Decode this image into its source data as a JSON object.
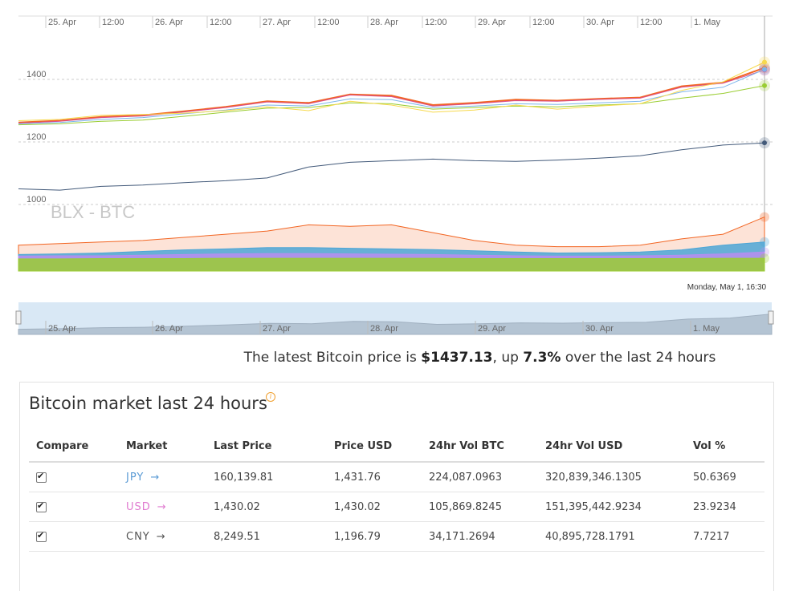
{
  "chart": {
    "watermark": "BLX - BTC",
    "tooltip_date": "Monday, May 1, 16:30",
    "x_ticks": [
      "25. Apr",
      "12:00",
      "26. Apr",
      "12:00",
      "27. Apr",
      "12:00",
      "28. Apr",
      "12:00",
      "29. Apr",
      "12:00",
      "30. Apr",
      "12:00",
      "1. May"
    ],
    "y_ticks": [
      "1400",
      "1200",
      "1000"
    ],
    "navigator_ticks": [
      "25. Apr",
      "26. Apr",
      "27. Apr",
      "28. Apr",
      "29. Apr",
      "30. Apr",
      "1. May"
    ]
  },
  "chart_data": {
    "type": "line",
    "y_axis_ticks": [
      1000,
      1200,
      1400
    ],
    "x_range": [
      "24. Apr 18:00",
      "1. May 16:30"
    ],
    "series": [
      {
        "color": "#f26522",
        "values": [
          1262,
          1268,
          1280,
          1285,
          1298,
          1312,
          1330,
          1325,
          1352,
          1348,
          1318,
          1325,
          1335,
          1332,
          1338,
          1342,
          1378,
          1390,
          1437
        ]
      },
      {
        "color": "#d94e8f",
        "values": [
          1260,
          1266,
          1278,
          1283,
          1296,
          1310,
          1328,
          1322,
          1350,
          1345,
          1315,
          1322,
          1332,
          1330,
          1336,
          1340,
          1375,
          1388,
          1430
        ]
      },
      {
        "color": "#7cb5ec",
        "values": [
          1258,
          1262,
          1272,
          1278,
          1290,
          1302,
          1318,
          1315,
          1338,
          1335,
          1310,
          1315,
          1322,
          1320,
          1325,
          1330,
          1360,
          1375,
          1432
        ]
      },
      {
        "color": "#9acd32",
        "values": [
          1255,
          1258,
          1266,
          1270,
          1282,
          1295,
          1308,
          1310,
          1325,
          1322,
          1305,
          1310,
          1315,
          1312,
          1318,
          1322,
          1340,
          1355,
          1380
        ]
      },
      {
        "color": "#f7d94c",
        "values": [
          1268,
          1272,
          1285,
          1288,
          1292,
          1300,
          1312,
          1300,
          1330,
          1318,
          1295,
          1302,
          1318,
          1305,
          1315,
          1322,
          1365,
          1392,
          1455
        ]
      },
      {
        "color": "#435a7a",
        "values": [
          1050,
          1046,
          1058,
          1062,
          1070,
          1076,
          1085,
          1120,
          1135,
          1140,
          1145,
          1140,
          1138,
          1142,
          1148,
          1156,
          1175,
          1190,
          1197
        ]
      }
    ],
    "volume_areas": [
      {
        "color": "#f26522",
        "values": [
          870,
          875,
          880,
          885,
          895,
          905,
          915,
          935,
          930,
          935,
          910,
          885,
          870,
          865,
          865,
          870,
          890,
          905,
          960
        ]
      },
      {
        "color": "#4da6d6",
        "values": [
          840,
          842,
          845,
          850,
          855,
          858,
          862,
          862,
          860,
          858,
          856,
          852,
          848,
          845,
          846,
          848,
          855,
          870,
          880
        ]
      },
      {
        "color": "#b88ef0",
        "values": [
          835,
          836,
          836,
          838,
          840,
          842,
          843,
          843,
          842,
          841,
          840,
          838,
          836,
          835,
          835,
          836,
          838,
          842,
          848
        ]
      },
      {
        "color": "#9acd32",
        "values": [
          826,
          826,
          827,
          827,
          827,
          828,
          828,
          828,
          828,
          828,
          828,
          827,
          827,
          827,
          827,
          827,
          827,
          828,
          828
        ]
      }
    ]
  },
  "summary": {
    "prefix": "The latest Bitcoin price is ",
    "price": "$1437.13",
    "middle": ", up ",
    "change": "7.3%",
    "suffix": " over the last 24 hours"
  },
  "market": {
    "title": "Bitcoin market last 24 hours",
    "info_icon": "i",
    "columns": [
      "Compare",
      "Market",
      "Last Price",
      "Price USD",
      "24hr Vol BTC",
      "24hr Vol USD",
      "Vol %"
    ],
    "rows": [
      {
        "checked": true,
        "market": "JPY",
        "market_color": "#5b9bd5",
        "last_price": "160,139.81",
        "price_usd": "1,431.76",
        "vol_btc": "224,087.0963",
        "vol_usd": "320,839,346.1305",
        "vol_pct": "50.6369"
      },
      {
        "checked": true,
        "market": "USD",
        "market_color": "#e07bd0",
        "last_price": "1,430.02",
        "price_usd": "1,430.02",
        "vol_btc": "105,869.8245",
        "vol_usd": "151,395,442.9234",
        "vol_pct": "23.9234"
      },
      {
        "checked": true,
        "market": "CNY",
        "market_color": "#555555",
        "last_price": "8,249.51",
        "price_usd": "1,196.79",
        "vol_btc": "34,171.2694",
        "vol_usd": "40,895,728.1791",
        "vol_pct": "7.7217"
      }
    ],
    "arrow": "→"
  }
}
